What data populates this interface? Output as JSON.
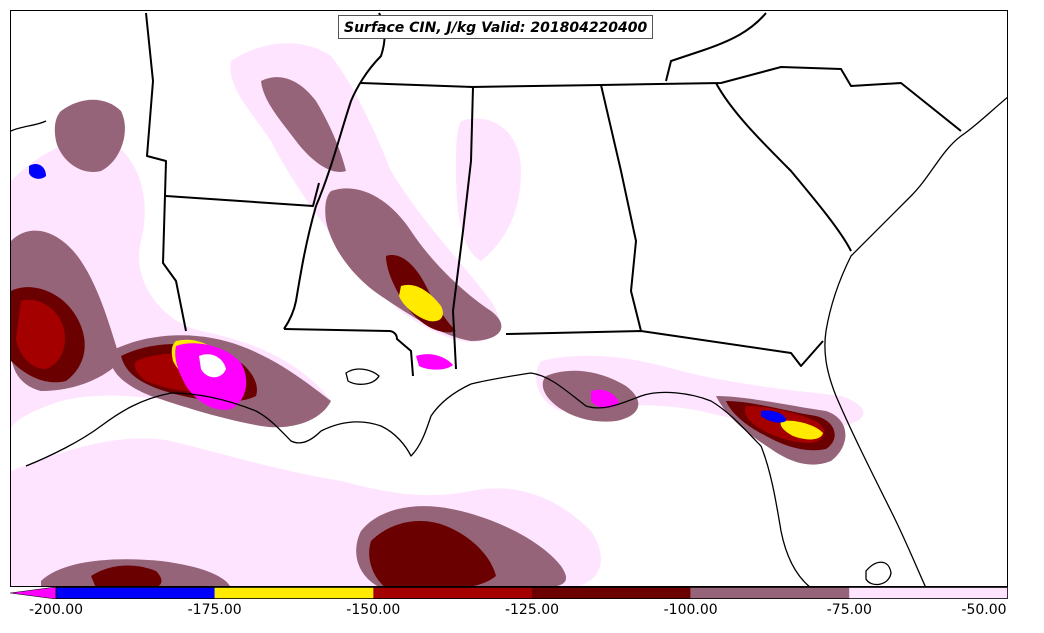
{
  "title": "Surface CIN, J/kg Valid: 201804220400",
  "colorbar": {
    "ticks": [
      "-200.00",
      "-175.00",
      "-150.00",
      "-125.00",
      "-100.00",
      "-75.00",
      "-50.00"
    ],
    "bins": [
      {
        "from": -200,
        "to": -175,
        "color": "#0000ff"
      },
      {
        "from": -175,
        "to": -150,
        "color": "#ffea00"
      },
      {
        "from": -150,
        "to": -125,
        "color": "#a50000"
      },
      {
        "from": -125,
        "to": -100,
        "color": "#6b0000"
      },
      {
        "from": -100,
        "to": -75,
        "color": "#966478"
      },
      {
        "from": -75,
        "to": -50,
        "color": "#ffe4ff"
      }
    ],
    "under_color": "#ff00ff"
  }
}
